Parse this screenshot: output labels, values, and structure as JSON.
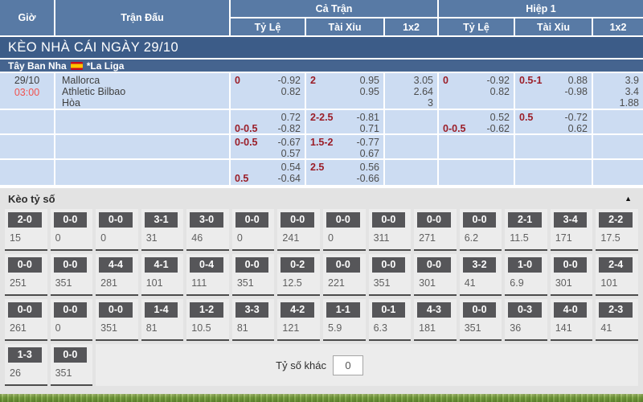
{
  "colors": {
    "header-blue": "#587aa5",
    "banner-blue": "#3c5c88",
    "league-blue": "#45648f",
    "row-blue": "#ccdcf2",
    "time-red": "#f0524e",
    "maroon": "#9b1e28",
    "section-bg": "#e3e3e3",
    "cell-bg": "#ececec",
    "btn-gray": "#565659"
  },
  "header": {
    "col_gio": "Giờ",
    "col_tran_dau": "Trận Đấu",
    "group_full": "Cả Trận",
    "group_half": "Hiệp 1",
    "sub_ty_le": "Tỷ Lệ",
    "sub_tai_xiu": "Tài Xỉu",
    "sub_1x2": "1x2"
  },
  "banner": {
    "title": "KÈO NHÀ CÁI NGÀY 29/10"
  },
  "league": {
    "country": "Tây Ban Nha",
    "flag": "spain-flag",
    "name": "*La Liga"
  },
  "odds_table": {
    "rows": [
      {
        "time": {
          "date": "29/10",
          "clock": "03:00"
        },
        "teams": [
          "Mallorca",
          "Athletic Bilbao",
          "Hòa"
        ],
        "odds": [
          {
            "lines": [
              [
                "0",
                "-0.92"
              ],
              [
                "",
                "0.82"
              ]
            ]
          },
          {
            "lines": [
              [
                "2",
                "0.95"
              ],
              [
                "",
                "0.95"
              ]
            ]
          },
          {
            "lines": [
              [
                "",
                "3.05"
              ],
              [
                "",
                "2.64"
              ],
              [
                "",
                "3"
              ]
            ]
          },
          {
            "lines": [
              [
                "0",
                "-0.92"
              ],
              [
                "",
                "0.82"
              ]
            ]
          },
          {
            "lines": [
              [
                "0.5-1",
                "0.88"
              ],
              [
                "",
                "-0.98"
              ]
            ]
          },
          {
            "lines": [
              [
                "",
                "3.9"
              ],
              [
                "",
                "3.4"
              ],
              [
                "",
                "1.88"
              ]
            ]
          }
        ]
      },
      {
        "time": null,
        "teams": [],
        "odds": [
          {
            "lines": [
              [
                "",
                "0.72"
              ],
              [
                "0-0.5",
                "-0.82"
              ]
            ]
          },
          {
            "lines": [
              [
                "2-2.5",
                "-0.81"
              ],
              [
                "",
                "0.71"
              ]
            ]
          },
          {
            "lines": []
          },
          {
            "lines": [
              [
                "",
                "0.52"
              ],
              [
                "0-0.5",
                "-0.62"
              ]
            ]
          },
          {
            "lines": [
              [
                "0.5",
                "-0.72"
              ],
              [
                "",
                "0.62"
              ]
            ]
          },
          {
            "lines": []
          }
        ]
      },
      {
        "time": null,
        "teams": [],
        "odds": [
          {
            "lines": [
              [
                "0-0.5",
                "-0.67"
              ],
              [
                "",
                "0.57"
              ]
            ]
          },
          {
            "lines": [
              [
                "1.5-2",
                "-0.77"
              ],
              [
                "",
                "0.67"
              ]
            ]
          },
          {
            "lines": []
          },
          {
            "lines": []
          },
          {
            "lines": []
          },
          {
            "lines": []
          }
        ]
      },
      {
        "time": null,
        "teams": [],
        "odds": [
          {
            "lines": [
              [
                "",
                "0.54"
              ],
              [
                "0.5",
                "-0.64"
              ]
            ]
          },
          {
            "lines": [
              [
                "2.5",
                "0.56"
              ],
              [
                "",
                "-0.66"
              ]
            ]
          },
          {
            "lines": []
          },
          {
            "lines": []
          },
          {
            "lines": []
          },
          {
            "lines": []
          }
        ]
      }
    ]
  },
  "score_section": {
    "title": "Kèo tỷ số",
    "collapse_icon": "▲",
    "other_label": "Tỷ số khác",
    "other_value": "0",
    "rows": [
      [
        {
          "score": "2-0",
          "odds": "15"
        },
        {
          "score": "0-0",
          "odds": "0"
        },
        {
          "score": "0-0",
          "odds": "0"
        },
        {
          "score": "3-1",
          "odds": "31"
        },
        {
          "score": "3-0",
          "odds": "46"
        },
        {
          "score": "0-0",
          "odds": "0"
        },
        {
          "score": "0-0",
          "odds": "241"
        },
        {
          "score": "0-0",
          "odds": "0"
        },
        {
          "score": "0-0",
          "odds": "311"
        },
        {
          "score": "0-0",
          "odds": "271"
        },
        {
          "score": "0-0",
          "odds": "6.2"
        },
        {
          "score": "2-1",
          "odds": "11.5"
        },
        {
          "score": "3-4",
          "odds": "171"
        },
        {
          "score": "2-2",
          "odds": "17.5"
        }
      ],
      [
        {
          "score": "0-0",
          "odds": "251"
        },
        {
          "score": "0-0",
          "odds": "351"
        },
        {
          "score": "4-4",
          "odds": "281"
        },
        {
          "score": "4-1",
          "odds": "101"
        },
        {
          "score": "0-4",
          "odds": "111"
        },
        {
          "score": "0-0",
          "odds": "351"
        },
        {
          "score": "0-2",
          "odds": "12.5"
        },
        {
          "score": "0-0",
          "odds": "221"
        },
        {
          "score": "0-0",
          "odds": "351"
        },
        {
          "score": "0-0",
          "odds": "301"
        },
        {
          "score": "3-2",
          "odds": "41"
        },
        {
          "score": "1-0",
          "odds": "6.9"
        },
        {
          "score": "0-0",
          "odds": "301"
        },
        {
          "score": "2-4",
          "odds": "101"
        }
      ],
      [
        {
          "score": "0-0",
          "odds": "261"
        },
        {
          "score": "0-0",
          "odds": "0"
        },
        {
          "score": "0-0",
          "odds": "351"
        },
        {
          "score": "1-4",
          "odds": "81"
        },
        {
          "score": "1-2",
          "odds": "10.5"
        },
        {
          "score": "3-3",
          "odds": "81"
        },
        {
          "score": "4-2",
          "odds": "121"
        },
        {
          "score": "1-1",
          "odds": "5.9"
        },
        {
          "score": "0-1",
          "odds": "6.3"
        },
        {
          "score": "4-3",
          "odds": "181"
        },
        {
          "score": "0-0",
          "odds": "351"
        },
        {
          "score": "0-3",
          "odds": "36"
        },
        {
          "score": "4-0",
          "odds": "141"
        },
        {
          "score": "2-3",
          "odds": "41"
        }
      ],
      [
        {
          "score": "1-3",
          "odds": "26"
        },
        {
          "score": "0-0",
          "odds": "351"
        }
      ]
    ]
  }
}
